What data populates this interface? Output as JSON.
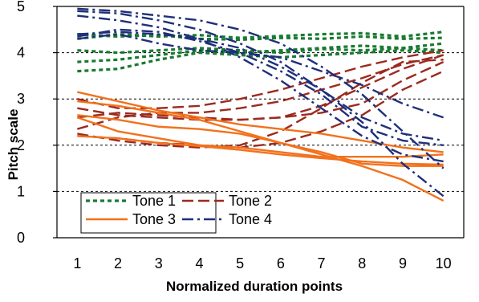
{
  "chart_data": {
    "type": "line",
    "title": "",
    "xlabel": "Normalized duration points",
    "ylabel": "Pitch scale",
    "x": [
      1,
      2,
      3,
      4,
      5,
      6,
      7,
      8,
      9,
      10
    ],
    "xlim": [
      0.5,
      10.5
    ],
    "ylim": [
      0,
      5
    ],
    "yticks": [
      0,
      1,
      2,
      3,
      4,
      5
    ],
    "grid": "horizontal dashed",
    "legend": "bottom-left",
    "groups": [
      {
        "name": "Tone 1",
        "color": "#1a7a32",
        "dash": "dotted",
        "series": [
          [
            4.4,
            4.35,
            4.38,
            4.3,
            4.28,
            4.32,
            4.3,
            4.35,
            4.3,
            4.32
          ],
          [
            4.3,
            4.4,
            4.35,
            4.38,
            4.32,
            4.36,
            4.4,
            4.42,
            4.35,
            4.45
          ],
          [
            4.05,
            4.0,
            4.05,
            4.1,
            4.05,
            4.0,
            4.08,
            4.05,
            4.1,
            4.05
          ],
          [
            3.8,
            3.85,
            3.95,
            4.05,
            4.0,
            4.05,
            4.1,
            4.15,
            4.1,
            4.2
          ],
          [
            3.6,
            3.65,
            3.85,
            4.0,
            3.95,
            3.9,
            3.95,
            4.0,
            4.05,
            4.0
          ]
        ]
      },
      {
        "name": "Tone 2",
        "color": "#9b2a1e",
        "dash": "dashed",
        "series": [
          [
            2.8,
            2.65,
            2.6,
            2.55,
            2.55,
            2.6,
            2.85,
            3.25,
            3.65,
            3.95
          ],
          [
            2.6,
            2.7,
            2.65,
            2.6,
            2.55,
            2.6,
            2.7,
            2.9,
            3.4,
            3.8
          ],
          [
            2.2,
            2.15,
            2.05,
            2.0,
            1.95,
            2.05,
            2.3,
            2.65,
            3.2,
            3.6
          ],
          [
            2.35,
            2.6,
            2.7,
            2.7,
            2.8,
            2.95,
            3.2,
            3.45,
            3.75,
            3.95
          ],
          [
            3.0,
            2.8,
            2.8,
            2.85,
            3.0,
            3.2,
            3.45,
            3.7,
            3.9,
            4.05
          ],
          [
            2.25,
            2.1,
            2.0,
            1.95,
            2.0,
            2.3,
            2.8,
            3.35,
            3.8,
            3.85
          ]
        ]
      },
      {
        "name": "Tone 3",
        "color": "#f2711c",
        "dash": "solid",
        "series": [
          [
            3.15,
            2.95,
            2.75,
            2.6,
            2.45,
            2.35,
            2.25,
            2.1,
            1.95,
            1.85
          ],
          [
            2.95,
            2.85,
            2.7,
            2.55,
            2.3,
            2.05,
            1.8,
            1.55,
            1.25,
            0.8
          ],
          [
            2.65,
            2.55,
            2.4,
            2.35,
            2.25,
            2.05,
            1.85,
            1.6,
            1.55,
            1.55
          ],
          [
            2.6,
            2.3,
            2.15,
            2.0,
            1.95,
            1.85,
            1.75,
            1.75,
            1.75,
            1.8
          ],
          [
            2.2,
            2.15,
            2.05,
            1.98,
            1.9,
            1.8,
            1.72,
            1.65,
            1.6,
            1.58
          ]
        ]
      },
      {
        "name": "Tone 4",
        "color": "#1f2f7a",
        "dash": "dashdot",
        "series": [
          [
            4.95,
            4.9,
            4.8,
            4.7,
            4.5,
            4.2,
            3.7,
            3.1,
            2.3,
            1.5
          ],
          [
            4.9,
            4.85,
            4.7,
            4.5,
            4.2,
            3.8,
            3.2,
            2.5,
            1.6,
            0.9
          ],
          [
            4.8,
            4.7,
            4.55,
            4.3,
            3.9,
            3.4,
            2.8,
            2.2,
            1.8,
            1.65
          ],
          [
            4.4,
            4.45,
            4.4,
            4.3,
            4.1,
            3.7,
            3.2,
            2.6,
            2.25,
            2.1
          ],
          [
            4.35,
            4.5,
            4.45,
            4.25,
            4.0,
            3.6,
            3.1,
            2.4,
            2.1,
            2.0
          ],
          [
            4.3,
            4.4,
            4.2,
            4.05,
            4.0,
            3.9,
            3.6,
            3.3,
            2.9,
            2.6
          ]
        ]
      }
    ]
  }
}
